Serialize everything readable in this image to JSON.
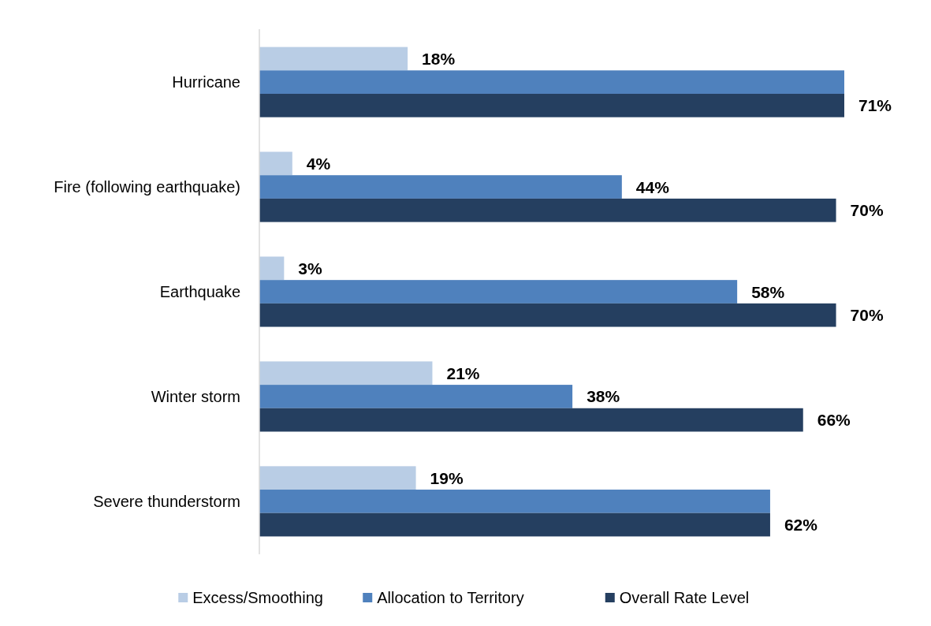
{
  "chart_data": {
    "type": "bar",
    "orientation": "horizontal",
    "categories": [
      "Hurricane",
      "Fire (following earthquake)",
      "Earthquake",
      "Winter storm",
      "Severe thunderstorm"
    ],
    "tick_labels": "y",
    "legend": "bottom",
    "series": [
      {
        "name": "Excess/Smoothing",
        "color": "#b9cde5",
        "values": [
          18,
          4,
          3,
          21,
          19
        ],
        "value_labels": [
          "18%",
          "4%",
          "3%",
          "21%",
          "19%"
        ]
      },
      {
        "name": "Allocation to Territory",
        "color": "#4f81bd",
        "values": [
          71,
          44,
          58,
          38,
          62
        ],
        "value_labels": [
          null,
          "44%",
          "58%",
          "38%",
          null
        ]
      },
      {
        "name": "Overall Rate Level",
        "color": "#253f60",
        "values": [
          71,
          70,
          70,
          66,
          62
        ],
        "value_labels": [
          "71%",
          "70%",
          "70%",
          "66%",
          "62%"
        ]
      }
    ]
  }
}
